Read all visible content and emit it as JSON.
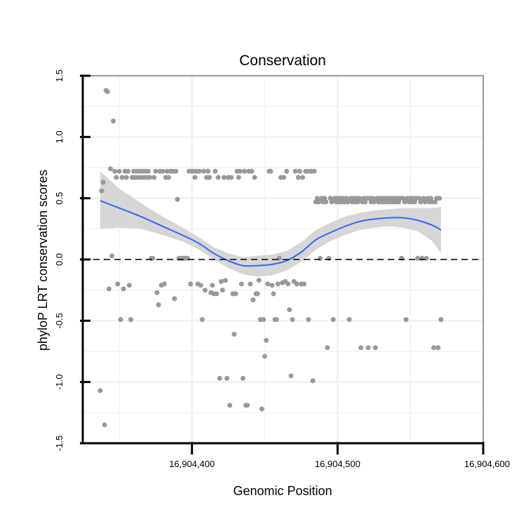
{
  "chart_data": {
    "type": "scatter",
    "title": "Conservation",
    "xlabel": "Genomic Position",
    "ylabel": "phyloP LRT conservation scores",
    "xlim": [
      16904325,
      16904600
    ],
    "ylim": [
      -1.5,
      1.5
    ],
    "x_ticks": [
      16904400,
      16904500,
      16904600
    ],
    "x_tick_labels": [
      "16,904,400",
      "16,904,500",
      "16,904,600"
    ],
    "y_ticks": [
      -1.5,
      -1.0,
      -0.5,
      0.0,
      0.5,
      1.0,
      1.5
    ],
    "y_tick_labels": [
      "-1.5",
      "-1.0",
      "-0.5",
      "0.0",
      "0.5",
      "1.0",
      "1.5"
    ],
    "grid": true,
    "reference_line": {
      "y": 0,
      "style": "dashed",
      "color": "#000000"
    },
    "colors": {
      "points": "#999999",
      "smooth": "#3366ff",
      "band": "#d6d6d6",
      "panel_border": "#7f7f7f",
      "grid": "#f2f2f2"
    },
    "series": [
      {
        "type": "scatter",
        "points": [
          [
            16904337,
            -1.07
          ],
          [
            16904338,
            0.56
          ],
          [
            16904339,
            0.63
          ],
          [
            16904340,
            -1.35
          ],
          [
            16904341,
            1.38
          ],
          [
            16904342,
            1.37
          ],
          [
            16904343,
            -0.24
          ],
          [
            16904344,
            0.74
          ],
          [
            16904345,
            0.03
          ],
          [
            16904346,
            1.13
          ],
          [
            16904347,
            0.72
          ],
          [
            16904348,
            0.67
          ],
          [
            16904349,
            -0.2
          ],
          [
            16904350,
            0.72
          ],
          [
            16904351,
            -0.49
          ],
          [
            16904352,
            0.67
          ],
          [
            16904353,
            -0.24
          ],
          [
            16904354,
            0.72
          ],
          [
            16904355,
            0.67
          ],
          [
            16904356,
            0.72
          ],
          [
            16904357,
            -0.21
          ],
          [
            16904358,
            -0.49
          ],
          [
            16904359,
            0.67
          ],
          [
            16904360,
            0.72
          ],
          [
            16904361,
            0.67
          ],
          [
            16904362,
            0.72
          ],
          [
            16904363,
            0.67
          ],
          [
            16904364,
            0.72
          ],
          [
            16904365,
            0.67
          ],
          [
            16904366,
            0.72
          ],
          [
            16904367,
            0.67
          ],
          [
            16904368,
            0.72
          ],
          [
            16904369,
            0.67
          ],
          [
            16904370,
            0.72
          ],
          [
            16904371,
            0.67
          ],
          [
            16904372,
            0.01
          ],
          [
            16904373,
            0.01
          ],
          [
            16904374,
            0.67
          ],
          [
            16904375,
            0.72
          ],
          [
            16904376,
            -0.27
          ],
          [
            16904377,
            -0.37
          ],
          [
            16904378,
            0.72
          ],
          [
            16904379,
            -0.21
          ],
          [
            16904380,
            0.72
          ],
          [
            16904381,
            -0.2
          ],
          [
            16904382,
            0.67
          ],
          [
            16904383,
            0.72
          ],
          [
            16904384,
            0.67
          ],
          [
            16904385,
            0.72
          ],
          [
            16904386,
            0.72
          ],
          [
            16904387,
            0.72
          ],
          [
            16904388,
            -0.32
          ],
          [
            16904389,
            0.72
          ],
          [
            16904390,
            0.49
          ],
          [
            16904391,
            0.01
          ],
          [
            16904392,
            0.01
          ],
          [
            16904393,
            0.01
          ],
          [
            16904394,
            0.01
          ],
          [
            16904395,
            0.01
          ],
          [
            16904396,
            0.01
          ],
          [
            16904397,
            0.01
          ],
          [
            16904398,
            0.72
          ],
          [
            16904399,
            -0.2
          ],
          [
            16904400,
            0.72
          ],
          [
            16904401,
            0.72
          ],
          [
            16904402,
            0.67
          ],
          [
            16904403,
            0.72
          ],
          [
            16904404,
            -0.2
          ],
          [
            16904405,
            0.72
          ],
          [
            16904406,
            -0.21
          ],
          [
            16904407,
            -0.49
          ],
          [
            16904408,
            0.72
          ],
          [
            16904409,
            -0.25
          ],
          [
            16904410,
            0.67
          ],
          [
            16904411,
            0.72
          ],
          [
            16904412,
            0.67
          ],
          [
            16904413,
            -0.27
          ],
          [
            16904414,
            -0.21
          ],
          [
            16904415,
            -0.28
          ],
          [
            16904416,
            0.72
          ],
          [
            16904417,
            -0.28
          ],
          [
            16904418,
            0.67
          ],
          [
            16904419,
            -0.97
          ],
          [
            16904420,
            -0.18
          ],
          [
            16904421,
            -0.25
          ],
          [
            16904422,
            0.67
          ],
          [
            16904423,
            -0.17
          ],
          [
            16904424,
            -0.97
          ],
          [
            16904425,
            0.67
          ],
          [
            16904426,
            -1.19
          ],
          [
            16904427,
            0.67
          ],
          [
            16904428,
            -0.28
          ],
          [
            16904429,
            -0.61
          ],
          [
            16904430,
            -0.28
          ],
          [
            16904431,
            0.72
          ],
          [
            16904432,
            0.67
          ],
          [
            16904433,
            0.72
          ],
          [
            16904434,
            -0.2
          ],
          [
            16904435,
            -0.97
          ],
          [
            16904436,
            0.72
          ],
          [
            16904437,
            -1.19
          ],
          [
            16904438,
            -1.19
          ],
          [
            16904439,
            0.72
          ],
          [
            16904440,
            -0.2
          ],
          [
            16904441,
            0.72
          ],
          [
            16904442,
            -0.33
          ],
          [
            16904443,
            0.67
          ],
          [
            16904444,
            -0.28
          ],
          [
            16904445,
            -0.28
          ],
          [
            16904446,
            -0.17
          ],
          [
            16904447,
            -0.49
          ],
          [
            16904448,
            -1.22
          ],
          [
            16904449,
            -0.49
          ],
          [
            16904450,
            -0.79
          ],
          [
            16904451,
            -0.66
          ],
          [
            16904452,
            -0.2
          ],
          [
            16904453,
            0.72
          ],
          [
            16904454,
            0.72
          ],
          [
            16904455,
            -0.21
          ],
          [
            16904456,
            -0.28
          ],
          [
            16904457,
            -0.49
          ],
          [
            16904458,
            -0.49
          ],
          [
            16904459,
            -0.2
          ],
          [
            16904460,
            0.01
          ],
          [
            16904461,
            0.67
          ],
          [
            16904462,
            -0.19
          ],
          [
            16904463,
            0.67
          ],
          [
            16904464,
            -0.18
          ],
          [
            16904465,
            0.72
          ],
          [
            16904466,
            -0.2
          ],
          [
            16904467,
            -0.41
          ],
          [
            16904468,
            -0.95
          ],
          [
            16904469,
            -0.49
          ],
          [
            16904470,
            -0.18
          ],
          [
            16904471,
            0.72
          ],
          [
            16904472,
            -0.2
          ],
          [
            16904473,
            0.67
          ],
          [
            16904474,
            0.72
          ],
          [
            16904475,
            -0.2
          ],
          [
            16904476,
            0.67
          ],
          [
            16904477,
            -0.2
          ],
          [
            16904478,
            0.72
          ],
          [
            16904479,
            0.72
          ],
          [
            16904480,
            -0.49
          ],
          [
            16904481,
            0.72
          ],
          [
            16904482,
            0.72
          ],
          [
            16904483,
            -0.99
          ],
          [
            16904484,
            0.72
          ],
          [
            16904485,
            0.47
          ],
          [
            16904486,
            0.5
          ],
          [
            16904487,
            0.47
          ],
          [
            16904488,
            0.01
          ],
          [
            16904489,
            0.5
          ],
          [
            16904490,
            0.47
          ],
          [
            16904491,
            0.5
          ],
          [
            16904492,
            0.47
          ],
          [
            16904493,
            -0.72
          ],
          [
            16904494,
            0.01
          ],
          [
            16904495,
            0.5
          ],
          [
            16904496,
            0.47
          ],
          [
            16904497,
            -0.49
          ],
          [
            16904498,
            0.5
          ],
          [
            16904499,
            0.47
          ],
          [
            16904500,
            0.5
          ],
          [
            16904501,
            0.47
          ],
          [
            16904502,
            0.5
          ],
          [
            16904503,
            0.47
          ],
          [
            16904504,
            0.5
          ],
          [
            16904505,
            0.47
          ],
          [
            16904506,
            0.5
          ],
          [
            16904507,
            0.47
          ],
          [
            16904508,
            -0.49
          ],
          [
            16904509,
            0.5
          ],
          [
            16904510,
            0.47
          ],
          [
            16904511,
            0.5
          ],
          [
            16904512,
            0.47
          ],
          [
            16904513,
            0.5
          ],
          [
            16904514,
            0.47
          ],
          [
            16904515,
            0.5
          ],
          [
            16904516,
            -0.72
          ],
          [
            16904517,
            0.47
          ],
          [
            16904518,
            0.5
          ],
          [
            16904519,
            0.47
          ],
          [
            16904520,
            0.5
          ],
          [
            16904521,
            -0.72
          ],
          [
            16904522,
            0.5
          ],
          [
            16904523,
            0.47
          ],
          [
            16904524,
            0.5
          ],
          [
            16904525,
            0.47
          ],
          [
            16904526,
            -0.72
          ],
          [
            16904527,
            0.5
          ],
          [
            16904528,
            0.47
          ],
          [
            16904529,
            0.5
          ],
          [
            16904530,
            0.47
          ],
          [
            16904531,
            0.5
          ],
          [
            16904532,
            0.47
          ],
          [
            16904533,
            0.5
          ],
          [
            16904534,
            0.47
          ],
          [
            16904535,
            0.5
          ],
          [
            16904536,
            0.47
          ],
          [
            16904537,
            0.5
          ],
          [
            16904538,
            0.47
          ],
          [
            16904539,
            0.5
          ],
          [
            16904540,
            0.47
          ],
          [
            16904541,
            0.5
          ],
          [
            16904542,
            0.47
          ],
          [
            16904543,
            0.5
          ],
          [
            16904544,
            0.01
          ],
          [
            16904545,
            0.5
          ],
          [
            16904546,
            0.47
          ],
          [
            16904547,
            -0.49
          ],
          [
            16904548,
            0.5
          ],
          [
            16904549,
            0.47
          ],
          [
            16904550,
            0.5
          ],
          [
            16904551,
            0.47
          ],
          [
            16904552,
            0.5
          ],
          [
            16904553,
            0.47
          ],
          [
            16904554,
            0.5
          ],
          [
            16904555,
            0.01
          ],
          [
            16904556,
            0.5
          ],
          [
            16904557,
            0.47
          ],
          [
            16904558,
            0.01
          ],
          [
            16904559,
            0.5
          ],
          [
            16904560,
            0.47
          ],
          [
            16904561,
            0.01
          ],
          [
            16904562,
            0.5
          ],
          [
            16904563,
            0.47
          ],
          [
            16904564,
            0.5
          ],
          [
            16904565,
            0.47
          ],
          [
            16904566,
            -0.72
          ],
          [
            16904567,
            0.47
          ],
          [
            16904568,
            0.5
          ],
          [
            16904569,
            -0.72
          ],
          [
            16904570,
            0.5
          ],
          [
            16904571,
            -0.49
          ]
        ]
      },
      {
        "type": "smooth",
        "x": [
          16904337,
          16904350,
          16904365,
          16904380,
          16904395,
          16904405,
          16904415,
          16904425,
          16904435,
          16904445,
          16904455,
          16904465,
          16904475,
          16904485,
          16904495,
          16904505,
          16904515,
          16904525,
          16904535,
          16904545,
          16904555,
          16904565,
          16904571
        ],
        "y": [
          0.48,
          0.42,
          0.35,
          0.27,
          0.19,
          0.13,
          0.05,
          -0.01,
          -0.05,
          -0.05,
          -0.04,
          -0.01,
          0.06,
          0.16,
          0.22,
          0.27,
          0.31,
          0.33,
          0.34,
          0.34,
          0.32,
          0.28,
          0.24
        ],
        "lower": [
          0.25,
          0.26,
          0.25,
          0.2,
          0.14,
          0.08,
          0.0,
          -0.07,
          -0.12,
          -0.14,
          -0.13,
          -0.09,
          -0.02,
          0.08,
          0.15,
          0.2,
          0.24,
          0.26,
          0.27,
          0.26,
          0.23,
          0.15,
          0.05
        ],
        "upper": [
          0.72,
          0.58,
          0.46,
          0.35,
          0.25,
          0.18,
          0.1,
          0.05,
          0.02,
          0.03,
          0.04,
          0.07,
          0.14,
          0.24,
          0.3,
          0.35,
          0.38,
          0.4,
          0.41,
          0.42,
          0.42,
          0.42,
          0.43
        ]
      }
    ]
  }
}
